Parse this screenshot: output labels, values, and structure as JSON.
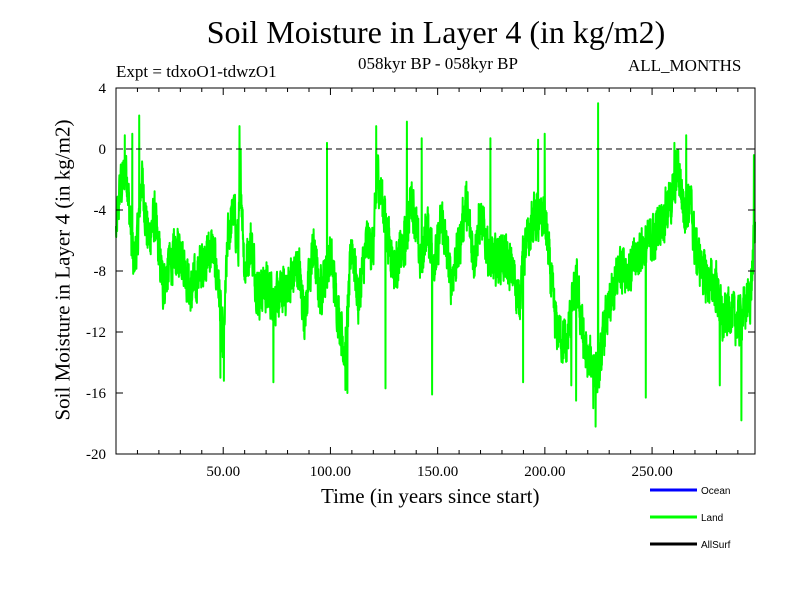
{
  "chart_data": {
    "type": "line",
    "title": "Soil Moisture in Layer 4 (in kg/m2)",
    "subtitle_left": "Expt = tdxoO1-tdwzO1",
    "subtitle_center": "058kyr BP - 058kyr BP",
    "subtitle_right": "ALL_MONTHS",
    "xlabel": "Time (in years since start)",
    "ylabel": "Soil Moisture in Layer 4 (in kg/m2)",
    "xlim": [
      0,
      298
    ],
    "ylim": [
      -20,
      4
    ],
    "xticks": [
      50,
      100,
      150,
      200,
      250
    ],
    "xtick_labels": [
      "50.00",
      "100.00",
      "150.00",
      "200.00",
      "250.00"
    ],
    "yticks": [
      4,
      0,
      -4,
      -8,
      -12,
      -16,
      -20
    ],
    "ytick_labels": [
      "4",
      "0",
      "-4",
      "-8",
      "-12",
      "-16",
      "-20"
    ],
    "reference_line": 0,
    "legend": [
      {
        "name": "Ocean",
        "color": "#0000ff"
      },
      {
        "name": "Land",
        "color": "#00ff00"
      },
      {
        "name": "AllSurf",
        "color": "#000000"
      }
    ],
    "series": [
      {
        "name": "Land",
        "color": "#00ff00",
        "anchors_x": [
          0,
          2,
          5,
          8,
          10,
          12,
          15,
          18,
          22,
          25,
          30,
          35,
          40,
          45,
          48,
          50,
          52,
          55,
          57,
          58,
          60,
          63,
          66,
          70,
          75,
          80,
          85,
          88,
          92,
          95,
          100,
          103,
          107,
          110,
          113,
          117,
          120,
          122,
          126,
          130,
          135,
          138,
          142,
          145,
          149,
          152,
          156,
          160,
          163,
          167,
          170,
          175,
          180,
          185,
          188,
          190,
          195,
          200,
          205,
          210,
          213,
          215,
          218,
          220,
          223,
          225,
          228,
          232,
          235,
          240,
          245,
          250,
          255,
          260,
          262,
          265,
          268,
          270,
          275,
          280,
          283,
          286,
          290,
          293,
          296,
          298
        ],
        "anchors_y": [
          -5.5,
          -2.5,
          -1.5,
          -7.5,
          -6,
          -1.8,
          -6,
          -4.5,
          -9,
          -7.5,
          -6.5,
          -9.5,
          -7.5,
          -6.5,
          -9,
          -13.5,
          -6,
          -4,
          -6.5,
          -1,
          -8,
          -6,
          -9.5,
          -9,
          -10,
          -9,
          -7.5,
          -11,
          -6.5,
          -9.5,
          -7,
          -10,
          -13.5,
          -6,
          -10,
          -6,
          -6.5,
          -1.5,
          -5,
          -8,
          -6,
          -3,
          -7.5,
          -5,
          -7.5,
          -4.5,
          -8.5,
          -6.5,
          -3.5,
          -7,
          -4.5,
          -7.5,
          -7,
          -8,
          -10,
          -7,
          -4.5,
          -4.5,
          -11.5,
          -13,
          -10,
          -9,
          -12.5,
          -14,
          -14,
          -15,
          -11.5,
          -9.5,
          -7.5,
          -8,
          -6.5,
          -6,
          -4.5,
          -3,
          -1,
          -4,
          -3.5,
          -6.5,
          -8.5,
          -9,
          -11.5,
          -10.5,
          -11.5,
          -10.5,
          -9.5,
          -5
        ],
        "noise_amplitude": 2.2,
        "spikes": [
          {
            "x": 10.8,
            "y": 2.2
          },
          {
            "x": 4.1,
            "y": 0.9
          },
          {
            "x": 7.6,
            "y": 1.0
          },
          {
            "x": 57.6,
            "y": 1.5
          },
          {
            "x": 98.4,
            "y": 0.4
          },
          {
            "x": 121.3,
            "y": 1.5
          },
          {
            "x": 135.7,
            "y": 1.8
          },
          {
            "x": 142.6,
            "y": 0.7
          },
          {
            "x": 174.6,
            "y": 0.7
          },
          {
            "x": 196.8,
            "y": 0.6
          },
          {
            "x": 199.9,
            "y": 1.0
          },
          {
            "x": 224.8,
            "y": 3.0
          },
          {
            "x": 260.4,
            "y": 0.4
          },
          {
            "x": 265.9,
            "y": 0.9
          },
          {
            "x": 297.5,
            "y": -0.4
          },
          {
            "x": 48.7,
            "y": -15.0
          },
          {
            "x": 50.3,
            "y": -15.2
          },
          {
            "x": 73.4,
            "y": -15.3
          },
          {
            "x": 107.0,
            "y": -15.8
          },
          {
            "x": 107.9,
            "y": -16.0
          },
          {
            "x": 125.7,
            "y": -15.7
          },
          {
            "x": 147.4,
            "y": -16.1
          },
          {
            "x": 189.8,
            "y": -15.3
          },
          {
            "x": 212.3,
            "y": -15.5
          },
          {
            "x": 214.6,
            "y": -16.5
          },
          {
            "x": 222.6,
            "y": -17.0
          },
          {
            "x": 223.7,
            "y": -18.2
          },
          {
            "x": 247.1,
            "y": -16.3
          },
          {
            "x": 281.6,
            "y": -15.5
          },
          {
            "x": 291.7,
            "y": -17.8
          }
        ]
      }
    ]
  }
}
